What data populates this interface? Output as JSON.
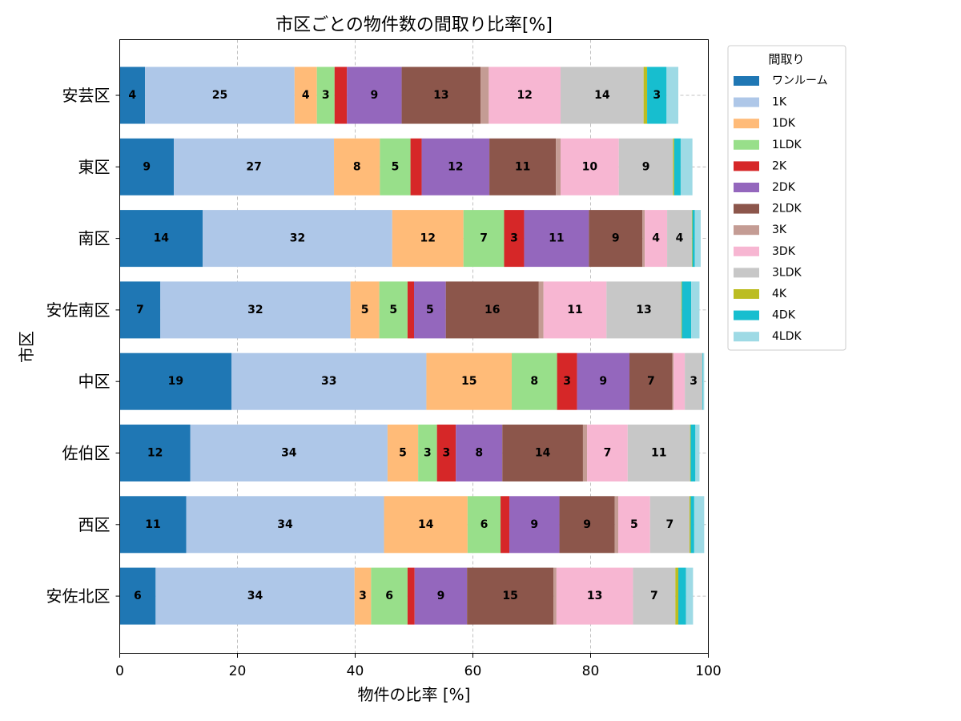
{
  "chart_data": {
    "type": "bar",
    "orientation": "horizontal",
    "stacked": true,
    "title": "市区ごとの物件数の間取り比率[%]",
    "xlabel": "物件の比率 [%]",
    "ylabel": "市区",
    "xlim": [
      0,
      100
    ],
    "xticks": [
      0,
      20,
      40,
      60,
      80,
      100
    ],
    "grid": true,
    "legend_title": "間取り",
    "legend_position": "outside-right-top",
    "categories": [
      "安芸区",
      "東区",
      "南区",
      "安佐南区",
      "中区",
      "佐伯区",
      "西区",
      "安佐北区"
    ],
    "series": [
      {
        "name": "ワンルーム",
        "color": "#1f77b4",
        "values": [
          4.3,
          9.2,
          14.1,
          6.9,
          19.0,
          12.0,
          11.3,
          6.1
        ]
      },
      {
        "name": "1K",
        "color": "#aec7e8",
        "values": [
          25.4,
          27.2,
          32.2,
          32.3,
          33.1,
          33.5,
          33.6,
          33.8
        ]
      },
      {
        "name": "1DK",
        "color": "#ffbb78",
        "values": [
          3.8,
          7.8,
          12.1,
          4.9,
          14.5,
          5.2,
          14.2,
          2.8
        ]
      },
      {
        "name": "1LDK",
        "color": "#98df8a",
        "values": [
          3.0,
          5.2,
          6.9,
          4.8,
          7.7,
          3.2,
          5.6,
          6.2
        ]
      },
      {
        "name": "2K",
        "color": "#d62728",
        "values": [
          2.1,
          1.9,
          3.4,
          1.1,
          3.4,
          3.2,
          1.5,
          1.2
        ]
      },
      {
        "name": "2DK",
        "color": "#9467bd",
        "values": [
          9.3,
          11.5,
          11.0,
          5.4,
          8.9,
          7.9,
          8.5,
          8.9
        ]
      },
      {
        "name": "2LDK",
        "color": "#8c564b",
        "values": [
          13.4,
          11.3,
          9.1,
          15.8,
          7.3,
          13.7,
          9.4,
          14.7
        ]
      },
      {
        "name": "3K",
        "color": "#c49c94",
        "values": [
          1.4,
          0.8,
          0.4,
          0.8,
          0.2,
          0.7,
          0.6,
          0.5
        ]
      },
      {
        "name": "3DK",
        "color": "#f7b6d2",
        "values": [
          12.2,
          9.9,
          3.8,
          10.7,
          1.9,
          6.9,
          5.4,
          13.0
        ]
      },
      {
        "name": "3LDK",
        "color": "#c7c7c7",
        "values": [
          14.1,
          9.2,
          4.2,
          12.7,
          3.0,
          10.6,
          6.7,
          7.2
        ]
      },
      {
        "name": "4K",
        "color": "#bcbd22",
        "values": [
          0.6,
          0.2,
          0.1,
          0.1,
          0.0,
          0.1,
          0.2,
          0.5
        ]
      },
      {
        "name": "4DK",
        "color": "#17becf",
        "values": [
          3.3,
          1.1,
          0.4,
          1.6,
          0.1,
          0.8,
          0.6,
          1.3
        ]
      },
      {
        "name": "4LDK",
        "color": "#9edae5",
        "values": [
          2.0,
          2.0,
          1.0,
          1.4,
          0.2,
          0.7,
          1.7,
          1.2
        ]
      }
    ]
  }
}
